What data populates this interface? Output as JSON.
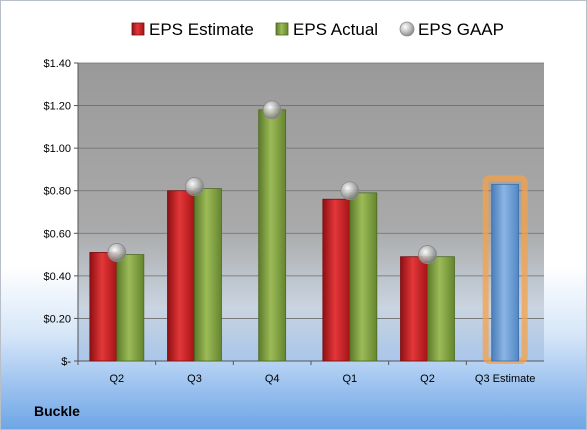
{
  "company": "Buckle",
  "colors": {
    "estimate": "#c8191d",
    "actual": "#7f9f3d",
    "gaap": "#a8a8a8",
    "q3_estimate": "#6f9fd6",
    "highlight": "#f5a24a"
  },
  "chart_data": {
    "type": "bar",
    "categories": [
      "Q2",
      "Q3",
      "Q4",
      "Q1",
      "Q2",
      "Q3 Estimate"
    ],
    "series": [
      {
        "name": "EPS Estimate",
        "values": [
          0.51,
          0.8,
          null,
          0.76,
          0.49,
          null
        ]
      },
      {
        "name": "EPS Actual",
        "values": [
          0.5,
          0.81,
          1.18,
          0.79,
          0.49,
          0.83
        ]
      },
      {
        "name": "EPS GAAP",
        "values": [
          0.51,
          0.82,
          1.18,
          0.8,
          0.5,
          null
        ]
      }
    ],
    "highlighted_category": "Q3 Estimate",
    "ylim": [
      0,
      1.4
    ],
    "yticks": [
      0,
      0.2,
      0.4,
      0.6,
      0.8,
      1.0,
      1.2,
      1.4
    ],
    "ytick_labels": [
      "$-",
      "$0.20",
      "$0.40",
      "$0.60",
      "$0.80",
      "$1.00",
      "$1.20",
      "$1.40"
    ],
    "legend_position": "top",
    "grid": true
  }
}
